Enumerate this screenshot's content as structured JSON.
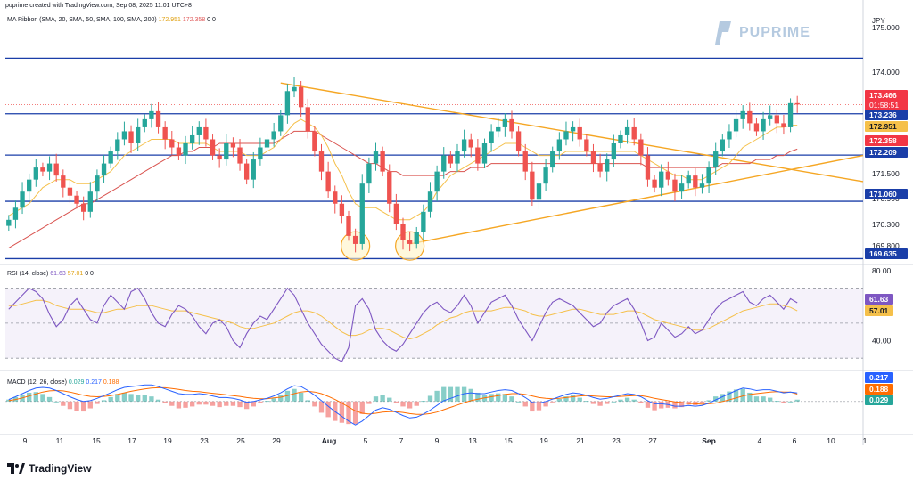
{
  "header": {
    "caption": "puprime created with TradingView.com, Sep 08, 2025 11:01 UTC+8",
    "currency": "JPY",
    "footer_brand": "TradingView",
    "watermark": "PUPRIME"
  },
  "indicators": {
    "ma_ribbon": {
      "label": "MA Ribbon (SMA, 20, SMA, 50, SMA, 100, SMA, 200)",
      "v1": "172.951",
      "v2": "172.358",
      "zeros": "0  0"
    },
    "rsi": {
      "label": "RSI (14, close)",
      "v1": "61.63",
      "v2": "57.01",
      "zeros": "0  0"
    },
    "macd": {
      "label": "MACD (12, 26, close)",
      "v1": "0.029",
      "v2": "0.217",
      "v3": "0.188"
    }
  },
  "colors": {
    "up": "#26a69a",
    "down": "#ef5350",
    "ma_fast": "#f5c04a",
    "ma_slow": "#d9534f",
    "trend": "#f5a623",
    "hline": "#1a3ea8",
    "rsi": "#7e57c2",
    "rsi_ma": "#f5c04a",
    "macd": "#2962ff",
    "signal": "#ff6d00"
  },
  "chart_data": [
    {
      "type": "candlestick",
      "name": "USDJPY price",
      "y_ticks": [
        "175.000",
        "174.000",
        "171.500",
        "170.900",
        "170.300",
        "169.800"
      ],
      "ylim": [
        169.6,
        175.4
      ],
      "x_ticks": [
        "9",
        "11",
        "15",
        "17",
        "19",
        "23",
        "25",
        "29",
        "Aug",
        "5",
        "7",
        "9",
        "13",
        "15",
        "19",
        "21",
        "23",
        "27",
        "Sep",
        "4",
        "6",
        "10",
        "1"
      ],
      "horizontal_levels": [
        "174.617",
        "173.236",
        "172.209",
        "171.060",
        "169.635"
      ],
      "price_tags": [
        {
          "value": "173.466",
          "sub": "01:58:51",
          "color": "#f23645"
        },
        {
          "value": "173.236",
          "color": "#1a3ea8"
        },
        {
          "value": "172.951",
          "color": "#f5c04a"
        },
        {
          "value": "172.358",
          "color": "#f23645"
        },
        {
          "value": "172.209",
          "color": "#1a3ea8"
        },
        {
          "value": "171.060",
          "color": "#1a3ea8"
        },
        {
          "value": "169.635",
          "color": "#1a3ea8"
        }
      ],
      "close": [
        170.6,
        170.9,
        171.3,
        171.6,
        171.9,
        171.8,
        172.0,
        171.7,
        171.4,
        171.2,
        171.0,
        170.8,
        171.3,
        171.7,
        172.0,
        172.3,
        172.6,
        172.8,
        172.5,
        172.9,
        173.1,
        173.3,
        172.9,
        172.6,
        172.4,
        172.2,
        172.5,
        172.7,
        172.9,
        172.6,
        172.2,
        172.1,
        172.5,
        172.4,
        172.0,
        171.6,
        172.1,
        172.4,
        172.6,
        172.8,
        173.2,
        173.8,
        173.9,
        173.4,
        172.8,
        172.3,
        171.8,
        171.3,
        171.0,
        170.7,
        170.2,
        170.0,
        171.5,
        172.0,
        172.3,
        171.8,
        171.0,
        170.5,
        170.1,
        170.0,
        170.3,
        170.8,
        171.3,
        171.8,
        172.2,
        172.0,
        172.3,
        172.6,
        172.4,
        172.0,
        172.5,
        172.8,
        172.9,
        173.1,
        172.8,
        172.3,
        171.8,
        171.1,
        171.5,
        171.9,
        172.3,
        172.6,
        172.8,
        172.9,
        172.6,
        172.3,
        172.0,
        171.8,
        172.1,
        172.5,
        172.7,
        172.9,
        172.6,
        172.2,
        171.6,
        171.4,
        171.8,
        171.6,
        171.3,
        171.5,
        171.7,
        171.4,
        171.5,
        171.9,
        172.3,
        172.6,
        172.8,
        173.1,
        173.3,
        173.0,
        172.8,
        173.1,
        173.2,
        173.0,
        172.9,
        173.5,
        173.466
      ],
      "ma_fast": [
        170.7,
        170.8,
        170.9,
        171.0,
        171.2,
        171.4,
        171.5,
        171.6,
        171.6,
        171.6,
        171.5,
        171.5,
        171.5,
        171.6,
        171.7,
        171.8,
        172.0,
        172.2,
        172.3,
        172.4,
        172.5,
        172.6,
        172.6,
        172.6,
        172.6,
        172.5,
        172.5,
        172.5,
        172.5,
        172.5,
        172.4,
        172.3,
        172.3,
        172.3,
        172.3,
        172.2,
        172.2,
        172.2,
        172.3,
        172.4,
        172.6,
        172.8,
        173.0,
        173.1,
        173.0,
        172.9,
        172.7,
        172.4,
        172.0,
        171.7,
        171.3,
        171.0,
        170.9,
        170.9,
        170.9,
        170.8,
        170.7,
        170.6,
        170.6,
        170.6,
        170.7,
        170.8,
        171.0,
        171.3,
        171.5,
        171.7,
        171.8,
        171.9,
        172.0,
        172.1,
        172.2,
        172.3,
        172.4,
        172.5,
        172.5,
        172.5,
        172.4,
        172.3,
        172.2,
        172.2,
        172.2,
        172.2,
        172.3,
        172.3,
        172.3,
        172.3,
        172.3,
        172.3,
        172.3,
        172.3,
        172.3,
        172.3,
        172.3,
        172.2,
        172.1,
        172.0,
        171.9,
        171.8,
        171.7,
        171.7,
        171.6,
        171.6,
        171.6,
        171.7,
        171.8,
        171.9,
        172.0,
        172.2,
        172.4,
        172.5,
        172.6,
        172.7,
        172.8,
        172.9,
        172.9,
        172.95,
        172.951
      ],
      "ma_slow": [
        169.9,
        170.0,
        170.1,
        170.2,
        170.3,
        170.4,
        170.5,
        170.6,
        170.7,
        170.8,
        170.9,
        171.0,
        171.0,
        171.1,
        171.2,
        171.3,
        171.4,
        171.5,
        171.6,
        171.7,
        171.8,
        171.9,
        172.0,
        172.1,
        172.2,
        172.2,
        172.3,
        172.3,
        172.4,
        172.4,
        172.4,
        172.5,
        172.5,
        172.5,
        172.5,
        172.5,
        172.5,
        172.5,
        172.5,
        172.5,
        172.6,
        172.7,
        172.8,
        172.8,
        172.8,
        172.8,
        172.7,
        172.6,
        172.5,
        172.4,
        172.3,
        172.2,
        172.1,
        172.0,
        172.0,
        171.9,
        171.8,
        171.8,
        171.7,
        171.7,
        171.7,
        171.7,
        171.7,
        171.7,
        171.7,
        171.8,
        171.8,
        171.8,
        171.9,
        171.9,
        171.9,
        172.0,
        172.0,
        172.0,
        172.0,
        172.0,
        172.0,
        172.0,
        172.0,
        172.0,
        172.0,
        172.0,
        172.0,
        172.0,
        172.0,
        172.0,
        172.0,
        172.0,
        172.0,
        172.0,
        172.0,
        172.0,
        172.0,
        172.0,
        171.9,
        171.9,
        171.9,
        171.9,
        171.9,
        171.9,
        171.9,
        171.9,
        171.9,
        171.9,
        171.9,
        172.0,
        172.0,
        172.0,
        172.0,
        172.0,
        172.1,
        172.1,
        172.1,
        172.2,
        172.2,
        172.3,
        172.358
      ]
    },
    {
      "type": "line",
      "name": "RSI (14, close)",
      "y_ticks": [
        "80.00",
        "40.00"
      ],
      "ylim": [
        25,
        82
      ],
      "rsi": [
        58,
        62,
        66,
        70,
        68,
        64,
        55,
        48,
        52,
        60,
        64,
        58,
        52,
        50,
        60,
        66,
        62,
        58,
        68,
        70,
        64,
        56,
        50,
        48,
        55,
        60,
        58,
        54,
        48,
        44,
        50,
        52,
        48,
        40,
        36,
        44,
        50,
        54,
        52,
        58,
        64,
        70,
        66,
        58,
        50,
        44,
        38,
        34,
        30,
        28,
        36,
        60,
        64,
        58,
        46,
        40,
        36,
        34,
        38,
        44,
        50,
        56,
        60,
        62,
        58,
        56,
        60,
        66,
        60,
        50,
        56,
        62,
        64,
        66,
        60,
        52,
        46,
        40,
        48,
        56,
        62,
        64,
        62,
        60,
        56,
        52,
        48,
        50,
        56,
        60,
        62,
        64,
        58,
        50,
        40,
        42,
        50,
        46,
        42,
        44,
        48,
        44,
        46,
        52,
        58,
        62,
        64,
        66,
        68,
        62,
        60,
        64,
        66,
        62,
        58,
        64,
        61.63
      ],
      "rsi_ma": [
        60,
        60,
        61,
        62,
        63,
        63,
        62,
        60,
        59,
        58,
        58,
        58,
        57,
        56,
        56,
        57,
        58,
        58,
        59,
        60,
        60,
        60,
        59,
        58,
        57,
        57,
        57,
        56,
        55,
        54,
        53,
        52,
        51,
        50,
        48,
        47,
        47,
        48,
        49,
        50,
        52,
        54,
        56,
        57,
        57,
        56,
        54,
        51,
        48,
        45,
        43,
        43,
        44,
        46,
        47,
        47,
        46,
        44,
        42,
        41,
        42,
        44,
        46,
        49,
        51,
        53,
        54,
        56,
        57,
        57,
        57,
        57,
        58,
        59,
        59,
        58,
        57,
        55,
        54,
        54,
        55,
        56,
        57,
        58,
        58,
        57,
        56,
        55,
        55,
        55,
        56,
        57,
        57,
        56,
        54,
        52,
        51,
        50,
        49,
        48,
        47,
        46,
        46,
        47,
        49,
        51,
        53,
        55,
        57,
        58,
        59,
        60,
        61,
        61,
        60,
        59,
        57.01
      ]
    },
    {
      "type": "line",
      "name": "MACD (12, 26, close)",
      "macd": [
        0.05,
        0.12,
        0.2,
        0.28,
        0.34,
        0.36,
        0.34,
        0.28,
        0.2,
        0.12,
        0.05,
        0.0,
        0.02,
        0.08,
        0.15,
        0.22,
        0.3,
        0.36,
        0.38,
        0.4,
        0.42,
        0.42,
        0.38,
        0.32,
        0.26,
        0.2,
        0.18,
        0.18,
        0.2,
        0.18,
        0.14,
        0.1,
        0.1,
        0.08,
        0.04,
        -0.02,
        0.0,
        0.04,
        0.08,
        0.14,
        0.22,
        0.32,
        0.4,
        0.38,
        0.28,
        0.16,
        0.02,
        -0.12,
        -0.26,
        -0.38,
        -0.5,
        -0.6,
        -0.5,
        -0.36,
        -0.22,
        -0.16,
        -0.2,
        -0.28,
        -0.36,
        -0.42,
        -0.4,
        -0.32,
        -0.22,
        -0.1,
        0.02,
        0.08,
        0.14,
        0.2,
        0.22,
        0.2,
        0.2,
        0.24,
        0.28,
        0.3,
        0.28,
        0.2,
        0.1,
        -0.02,
        -0.04,
        0.0,
        0.06,
        0.12,
        0.18,
        0.22,
        0.2,
        0.16,
        0.1,
        0.06,
        0.08,
        0.12,
        0.16,
        0.2,
        0.18,
        0.12,
        0.02,
        -0.06,
        -0.06,
        -0.08,
        -0.12,
        -0.12,
        -0.1,
        -0.12,
        -0.1,
        -0.04,
        0.04,
        0.12,
        0.2,
        0.28,
        0.34,
        0.32,
        0.28,
        0.3,
        0.3,
        0.26,
        0.22,
        0.24,
        0.217
      ],
      "signal": [
        0.02,
        0.05,
        0.09,
        0.14,
        0.19,
        0.24,
        0.27,
        0.28,
        0.27,
        0.24,
        0.2,
        0.16,
        0.13,
        0.12,
        0.13,
        0.15,
        0.18,
        0.22,
        0.26,
        0.29,
        0.32,
        0.34,
        0.35,
        0.35,
        0.33,
        0.31,
        0.28,
        0.26,
        0.25,
        0.23,
        0.21,
        0.19,
        0.17,
        0.15,
        0.13,
        0.1,
        0.08,
        0.07,
        0.07,
        0.09,
        0.11,
        0.15,
        0.2,
        0.24,
        0.26,
        0.24,
        0.2,
        0.13,
        0.05,
        -0.04,
        -0.14,
        -0.24,
        -0.3,
        -0.32,
        -0.3,
        -0.27,
        -0.26,
        -0.26,
        -0.28,
        -0.31,
        -0.33,
        -0.33,
        -0.31,
        -0.27,
        -0.21,
        -0.15,
        -0.09,
        -0.03,
        0.02,
        0.06,
        0.09,
        0.12,
        0.15,
        0.18,
        0.2,
        0.2,
        0.18,
        0.14,
        0.1,
        0.08,
        0.07,
        0.08,
        0.1,
        0.12,
        0.14,
        0.15,
        0.14,
        0.13,
        0.12,
        0.12,
        0.13,
        0.14,
        0.15,
        0.15,
        0.12,
        0.08,
        0.05,
        0.02,
        -0.01,
        -0.03,
        -0.05,
        -0.06,
        -0.07,
        -0.06,
        -0.04,
        0.0,
        0.04,
        0.09,
        0.14,
        0.18,
        0.2,
        0.22,
        0.24,
        0.25,
        0.24,
        0.24,
        0.188
      ],
      "price_tags": [
        {
          "value": "0.217",
          "color": "#2962ff"
        },
        {
          "value": "0.188",
          "color": "#ff6d00"
        },
        {
          "value": "0.029",
          "color": "#26a69a"
        }
      ]
    }
  ]
}
